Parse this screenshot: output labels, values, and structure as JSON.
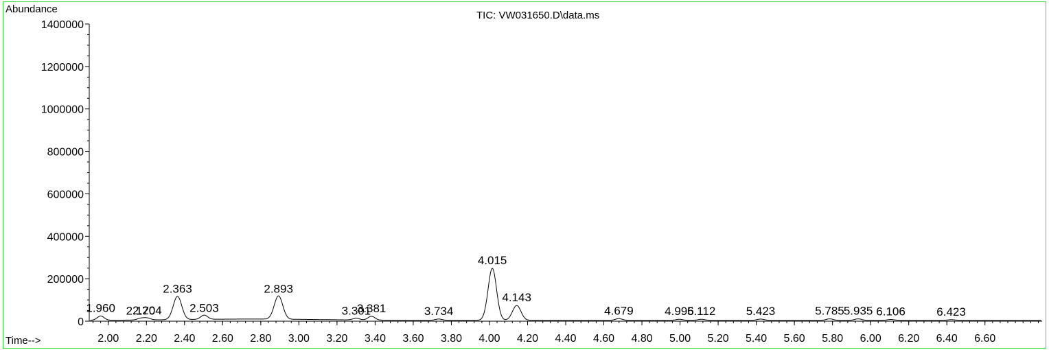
{
  "chart_data": {
    "type": "line",
    "title": "TIC: VW031650.D\\data.ms",
    "ylabel": "Abundance",
    "xlabel": "Time-->",
    "xlim": [
      1.9,
      6.9
    ],
    "ylim": [
      0,
      1400000
    ],
    "x_ticks": [
      2.0,
      2.2,
      2.4,
      2.6,
      2.8,
      3.0,
      3.2,
      3.4,
      3.6,
      3.8,
      4.0,
      4.2,
      4.4,
      4.6,
      4.8,
      5.0,
      5.2,
      5.4,
      5.6,
      5.8,
      6.0,
      6.2,
      6.4,
      6.6
    ],
    "x_tick_labels": [
      "2.00",
      "2.20",
      "2.40",
      "2.60",
      "2.80",
      "3.00",
      "3.20",
      "3.40",
      "3.60",
      "3.80",
      "4.00",
      "4.20",
      "4.40",
      "4.60",
      "4.80",
      "5.00",
      "5.20",
      "5.40",
      "5.60",
      "5.80",
      "6.00",
      "6.20",
      "6.40",
      "6.60"
    ],
    "y_ticks": [
      0,
      200000,
      400000,
      600000,
      800000,
      1000000,
      1200000,
      1400000
    ],
    "y_tick_labels": [
      "0",
      "200000",
      "400000",
      "600000",
      "800000",
      "1000000",
      "1200000",
      "1400000"
    ],
    "baseline": 4000,
    "series": [
      {
        "line_color": "#000000",
        "peaks": [
          {
            "rt": 1.96,
            "label": "1.960",
            "height": 20000
          },
          {
            "rt": 2.17,
            "label": "2.170",
            "height": 8000
          },
          {
            "rt": 2.204,
            "label": "2.204",
            "height": 9000
          },
          {
            "rt": 2.363,
            "label": "2.363",
            "height": 110000
          },
          {
            "rt": 2.503,
            "label": "2.503",
            "height": 20000
          },
          {
            "rt": 2.893,
            "label": "2.893",
            "height": 110000
          },
          {
            "rt": 3.301,
            "label": "3.301",
            "height": 8000
          },
          {
            "rt": 3.381,
            "label": "3.381",
            "height": 18000
          },
          {
            "rt": 3.734,
            "label": "3.734",
            "height": 6000
          },
          {
            "rt": 4.015,
            "label": "4.015",
            "height": 245000
          },
          {
            "rt": 4.143,
            "label": "4.143",
            "height": 70000
          },
          {
            "rt": 4.679,
            "label": "4.679",
            "height": 8000
          },
          {
            "rt": 4.996,
            "label": "4.996",
            "height": 5000
          },
          {
            "rt": 5.112,
            "label": "5.112",
            "height": 5000
          },
          {
            "rt": 5.423,
            "label": "5.423",
            "height": 6000
          },
          {
            "rt": 5.785,
            "label": "5.785",
            "height": 7000
          },
          {
            "rt": 5.935,
            "label": "5.935",
            "height": 7000
          },
          {
            "rt": 6.106,
            "label": "6.106",
            "height": 4000
          },
          {
            "rt": 6.423,
            "label": "6.423",
            "height": 3000
          }
        ]
      }
    ],
    "grid": false,
    "legend": "none"
  }
}
